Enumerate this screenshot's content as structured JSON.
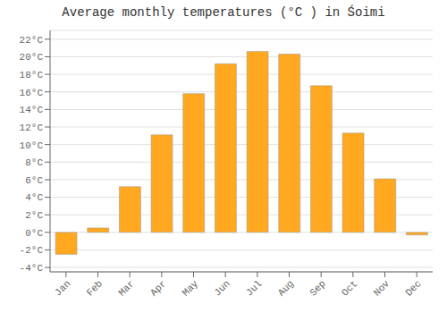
{
  "chart_data": {
    "type": "bar",
    "title": "Average monthly temperatures (°C ) in Śoimi",
    "categories": [
      "Jan",
      "Feb",
      "Mar",
      "Apr",
      "May",
      "Jun",
      "Jul",
      "Aug",
      "Sep",
      "Oct",
      "Nov",
      "Dec"
    ],
    "values": [
      -2.5,
      0.5,
      5.2,
      11.1,
      15.8,
      19.2,
      20.6,
      20.3,
      16.7,
      11.3,
      6.1,
      -0.3
    ],
    "color": "#FFA820",
    "ylim": [
      -4.5,
      23
    ],
    "yticks": [
      {
        "value": -4,
        "label": "-4°C"
      },
      {
        "value": -2,
        "label": "-2°C"
      },
      {
        "value": 0,
        "label": "0°C"
      },
      {
        "value": 2,
        "label": "2°C"
      },
      {
        "value": 4,
        "label": "4°C"
      },
      {
        "value": 6,
        "label": "6°C"
      },
      {
        "value": 8,
        "label": "8°C"
      },
      {
        "value": 10,
        "label": "10°C"
      },
      {
        "value": 12,
        "label": "12°C"
      },
      {
        "value": 14,
        "label": "14°C"
      },
      {
        "value": 16,
        "label": "16°C"
      },
      {
        "value": 18,
        "label": "18°C"
      },
      {
        "value": 20,
        "label": "20°C"
      },
      {
        "value": 22,
        "label": "22°C"
      }
    ],
    "grid": true
  }
}
